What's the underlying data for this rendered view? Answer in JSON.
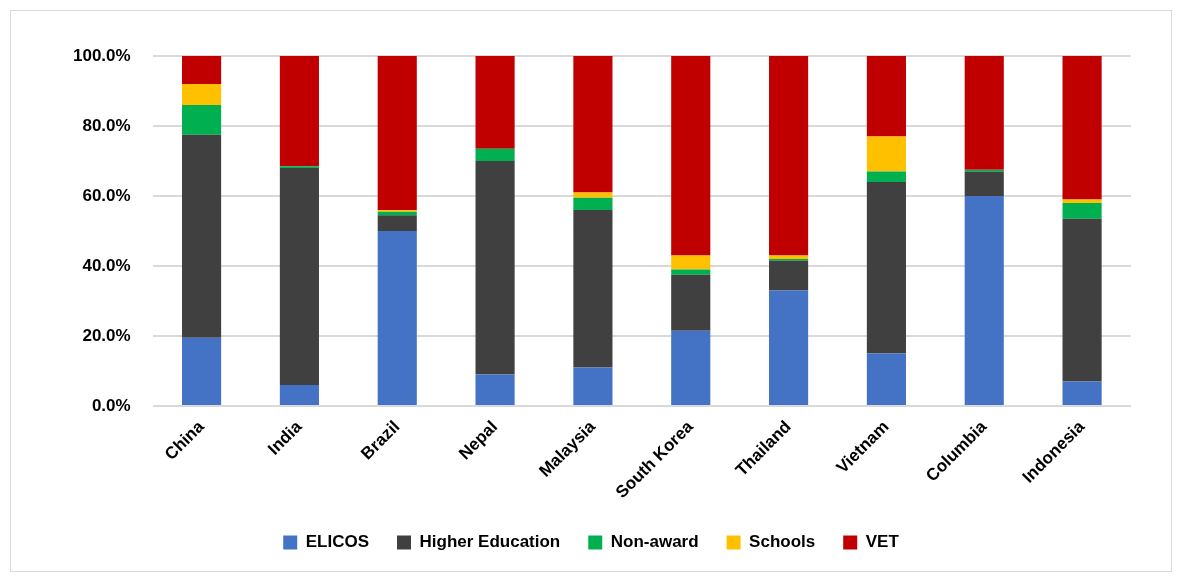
{
  "chart_data": {
    "type": "bar",
    "stacked": true,
    "categories": [
      "China",
      "India",
      "Brazil",
      "Nepal",
      "Malaysia",
      "South Korea",
      "Thailand",
      "Vietnam",
      "Columbia",
      "Indonesia"
    ],
    "series": [
      {
        "name": "ELICOS",
        "color": "#4472c4",
        "values": [
          19.5,
          6,
          50,
          9,
          11,
          21.5,
          33,
          15,
          60,
          7
        ]
      },
      {
        "name": "Higher Education",
        "color": "#404040",
        "values": [
          58,
          62,
          4.5,
          61,
          45,
          16,
          8.5,
          49,
          7,
          46.5
        ]
      },
      {
        "name": "Non-award",
        "color": "#00b050",
        "values": [
          8.5,
          0.5,
          1,
          3.5,
          3.5,
          1.5,
          0.5,
          3,
          0.5,
          4.5
        ]
      },
      {
        "name": "Schools",
        "color": "#ffc000",
        "values": [
          6,
          0,
          0.5,
          0,
          1.5,
          4,
          1,
          10,
          0,
          1
        ]
      },
      {
        "name": "VET",
        "color": "#c00000",
        "values": [
          8,
          31.5,
          44,
          26.5,
          39,
          57,
          57,
          23,
          32.5,
          41
        ]
      }
    ],
    "ylim": [
      0,
      100
    ],
    "yticks": [
      {
        "value": 0,
        "label": "0.0%"
      },
      {
        "value": 20,
        "label": "20.0%"
      },
      {
        "value": 40,
        "label": "40.0%"
      },
      {
        "value": 60,
        "label": "60.0%"
      },
      {
        "value": 80,
        "label": "80.0%"
      },
      {
        "value": 100,
        "label": "100.0%"
      }
    ],
    "grid": "y",
    "legend": "bottom"
  }
}
